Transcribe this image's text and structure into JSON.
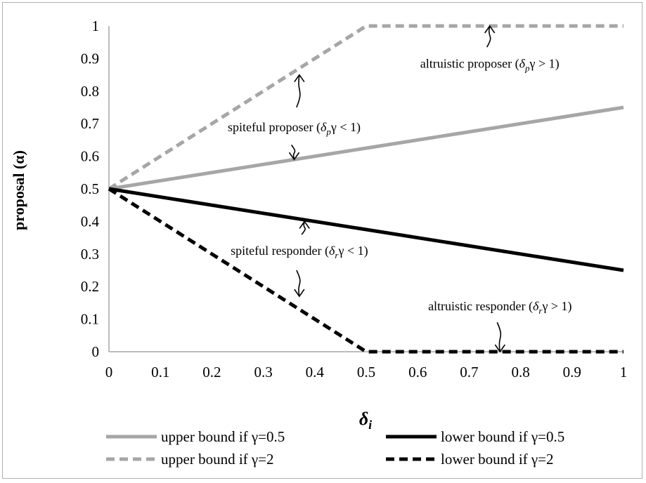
{
  "chart_data": {
    "type": "line",
    "title": "",
    "xlabel": "δi",
    "ylabel": "proposal (α)",
    "xlim": [
      0,
      1
    ],
    "ylim": [
      0,
      1
    ],
    "x_ticks": [
      "0",
      "0.1",
      "0.2",
      "0.3",
      "0.4",
      "0.5",
      "0.6",
      "0.7",
      "0.8",
      "0.9",
      "1"
    ],
    "y_ticks": [
      "0",
      "0.1",
      "0.2",
      "0.3",
      "0.4",
      "0.5",
      "0.6",
      "0.7",
      "0.8",
      "0.9",
      "1"
    ],
    "grid": false,
    "legend_position": "bottom",
    "series": [
      {
        "name": "upper bound if γ=0.5",
        "color": "#a6a6a6",
        "dash": "solid",
        "points": [
          [
            0,
            0.5
          ],
          [
            1,
            0.75
          ]
        ]
      },
      {
        "name": "lower bound if γ=0.5",
        "color": "#000000",
        "dash": "solid",
        "points": [
          [
            0,
            0.5
          ],
          [
            1,
            0.25
          ]
        ]
      },
      {
        "name": "upper bound if γ=2",
        "color": "#a6a6a6",
        "dash": "dashed",
        "points": [
          [
            0,
            0.5
          ],
          [
            0.5,
            1
          ],
          [
            1,
            1
          ]
        ]
      },
      {
        "name": "lower bound if γ=2",
        "color": "#000000",
        "dash": "dashed",
        "points": [
          [
            0,
            0.5
          ],
          [
            0.5,
            0
          ],
          [
            1,
            0
          ]
        ]
      }
    ],
    "annotations": [
      {
        "text": "altruistic proposer (δpγ > 1)",
        "pieces": [
          [
            "altruistic proposer (",
            ""
          ],
          [
            "δ",
            "i"
          ],
          [
            "p",
            "sub"
          ],
          [
            "γ > 1)",
            "i-tail"
          ]
        ],
        "at": [
          0.74,
          0.885
        ],
        "arrow_to": [
          0.74,
          1.0
        ],
        "arrow_from": [
          0.74,
          0.935
        ]
      },
      {
        "text": "spiteful proposer (δpγ < 1)",
        "pieces": [
          [
            "spiteful proposer (",
            ""
          ],
          [
            "δ",
            "i"
          ],
          [
            "p",
            "sub"
          ],
          [
            "γ < 1)",
            "i-tail"
          ]
        ],
        "at": [
          0.36,
          0.69
        ],
        "arrows": [
          [
            [
              0.37,
              0.75
            ],
            [
              0.37,
              0.85
            ]
          ],
          [
            [
              0.36,
              0.635
            ],
            [
              0.36,
              0.59
            ]
          ]
        ]
      },
      {
        "text": "spiteful responder (δrγ < 1)",
        "pieces": [
          [
            "spiteful responder (",
            ""
          ],
          [
            "δ",
            "i"
          ],
          [
            "r",
            "sub"
          ],
          [
            "γ < 1)",
            "i-tail"
          ]
        ],
        "at": [
          0.37,
          0.31
        ],
        "arrows": [
          [
            [
              0.38,
              0.36
            ],
            [
              0.38,
              0.4
            ]
          ],
          [
            [
              0.37,
              0.25
            ],
            [
              0.37,
              0.17
            ]
          ]
        ]
      },
      {
        "text": "altruistic responder (δrγ > 1)",
        "pieces": [
          [
            "altruistic responder (",
            ""
          ],
          [
            "δ",
            "i"
          ],
          [
            "r",
            "sub"
          ],
          [
            "γ > 1)",
            "i-tail"
          ]
        ],
        "at": [
          0.76,
          0.14
        ],
        "arrow_to": [
          0.76,
          0.0
        ],
        "arrow_from": [
          0.76,
          0.09
        ]
      }
    ]
  }
}
